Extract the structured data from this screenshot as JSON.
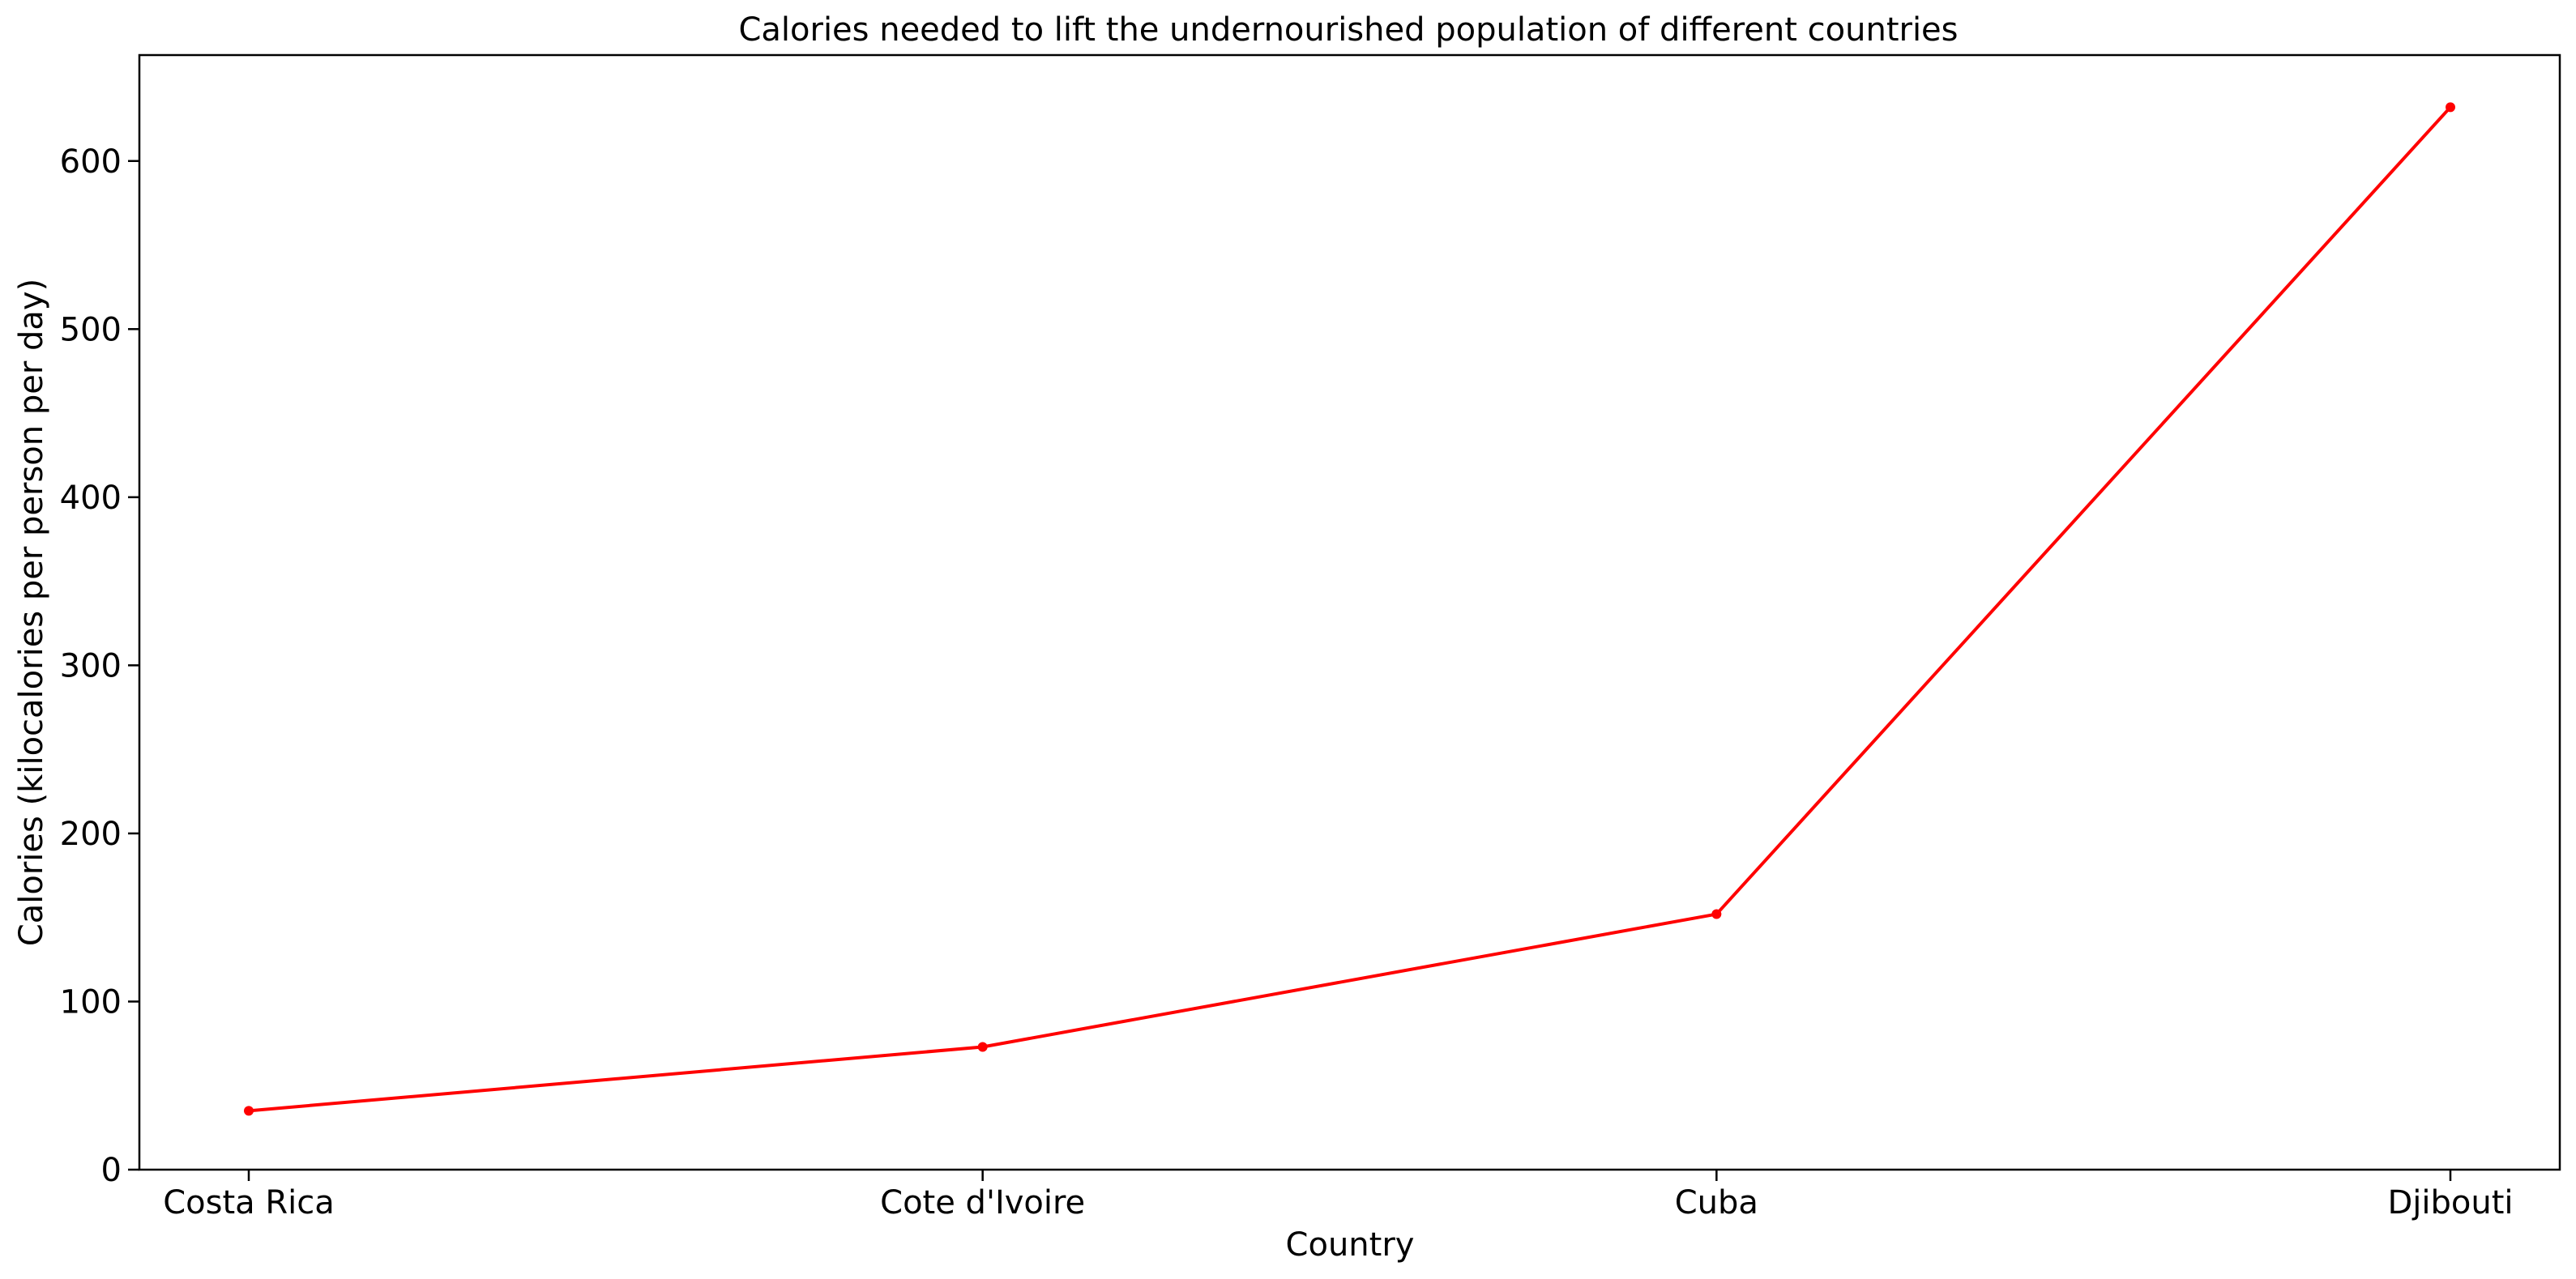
{
  "chart_data": {
    "type": "line",
    "title": "Calories needed to lift the undernourished population of different countries",
    "xlabel": "Country",
    "ylabel": "Calories (kilocalories per person per day)",
    "categories": [
      "Costa Rica",
      "Cote d'Ivoire",
      "Cuba",
      "Djibouti"
    ],
    "series": [
      {
        "values": [
          35,
          73,
          152,
          632
        ]
      }
    ],
    "ylim": [
      0,
      663
    ],
    "yticks": [
      0,
      100,
      200,
      300,
      400,
      500,
      600
    ],
    "grid": false,
    "line_color": "#ff0000",
    "marker_color": "#ff0000"
  }
}
